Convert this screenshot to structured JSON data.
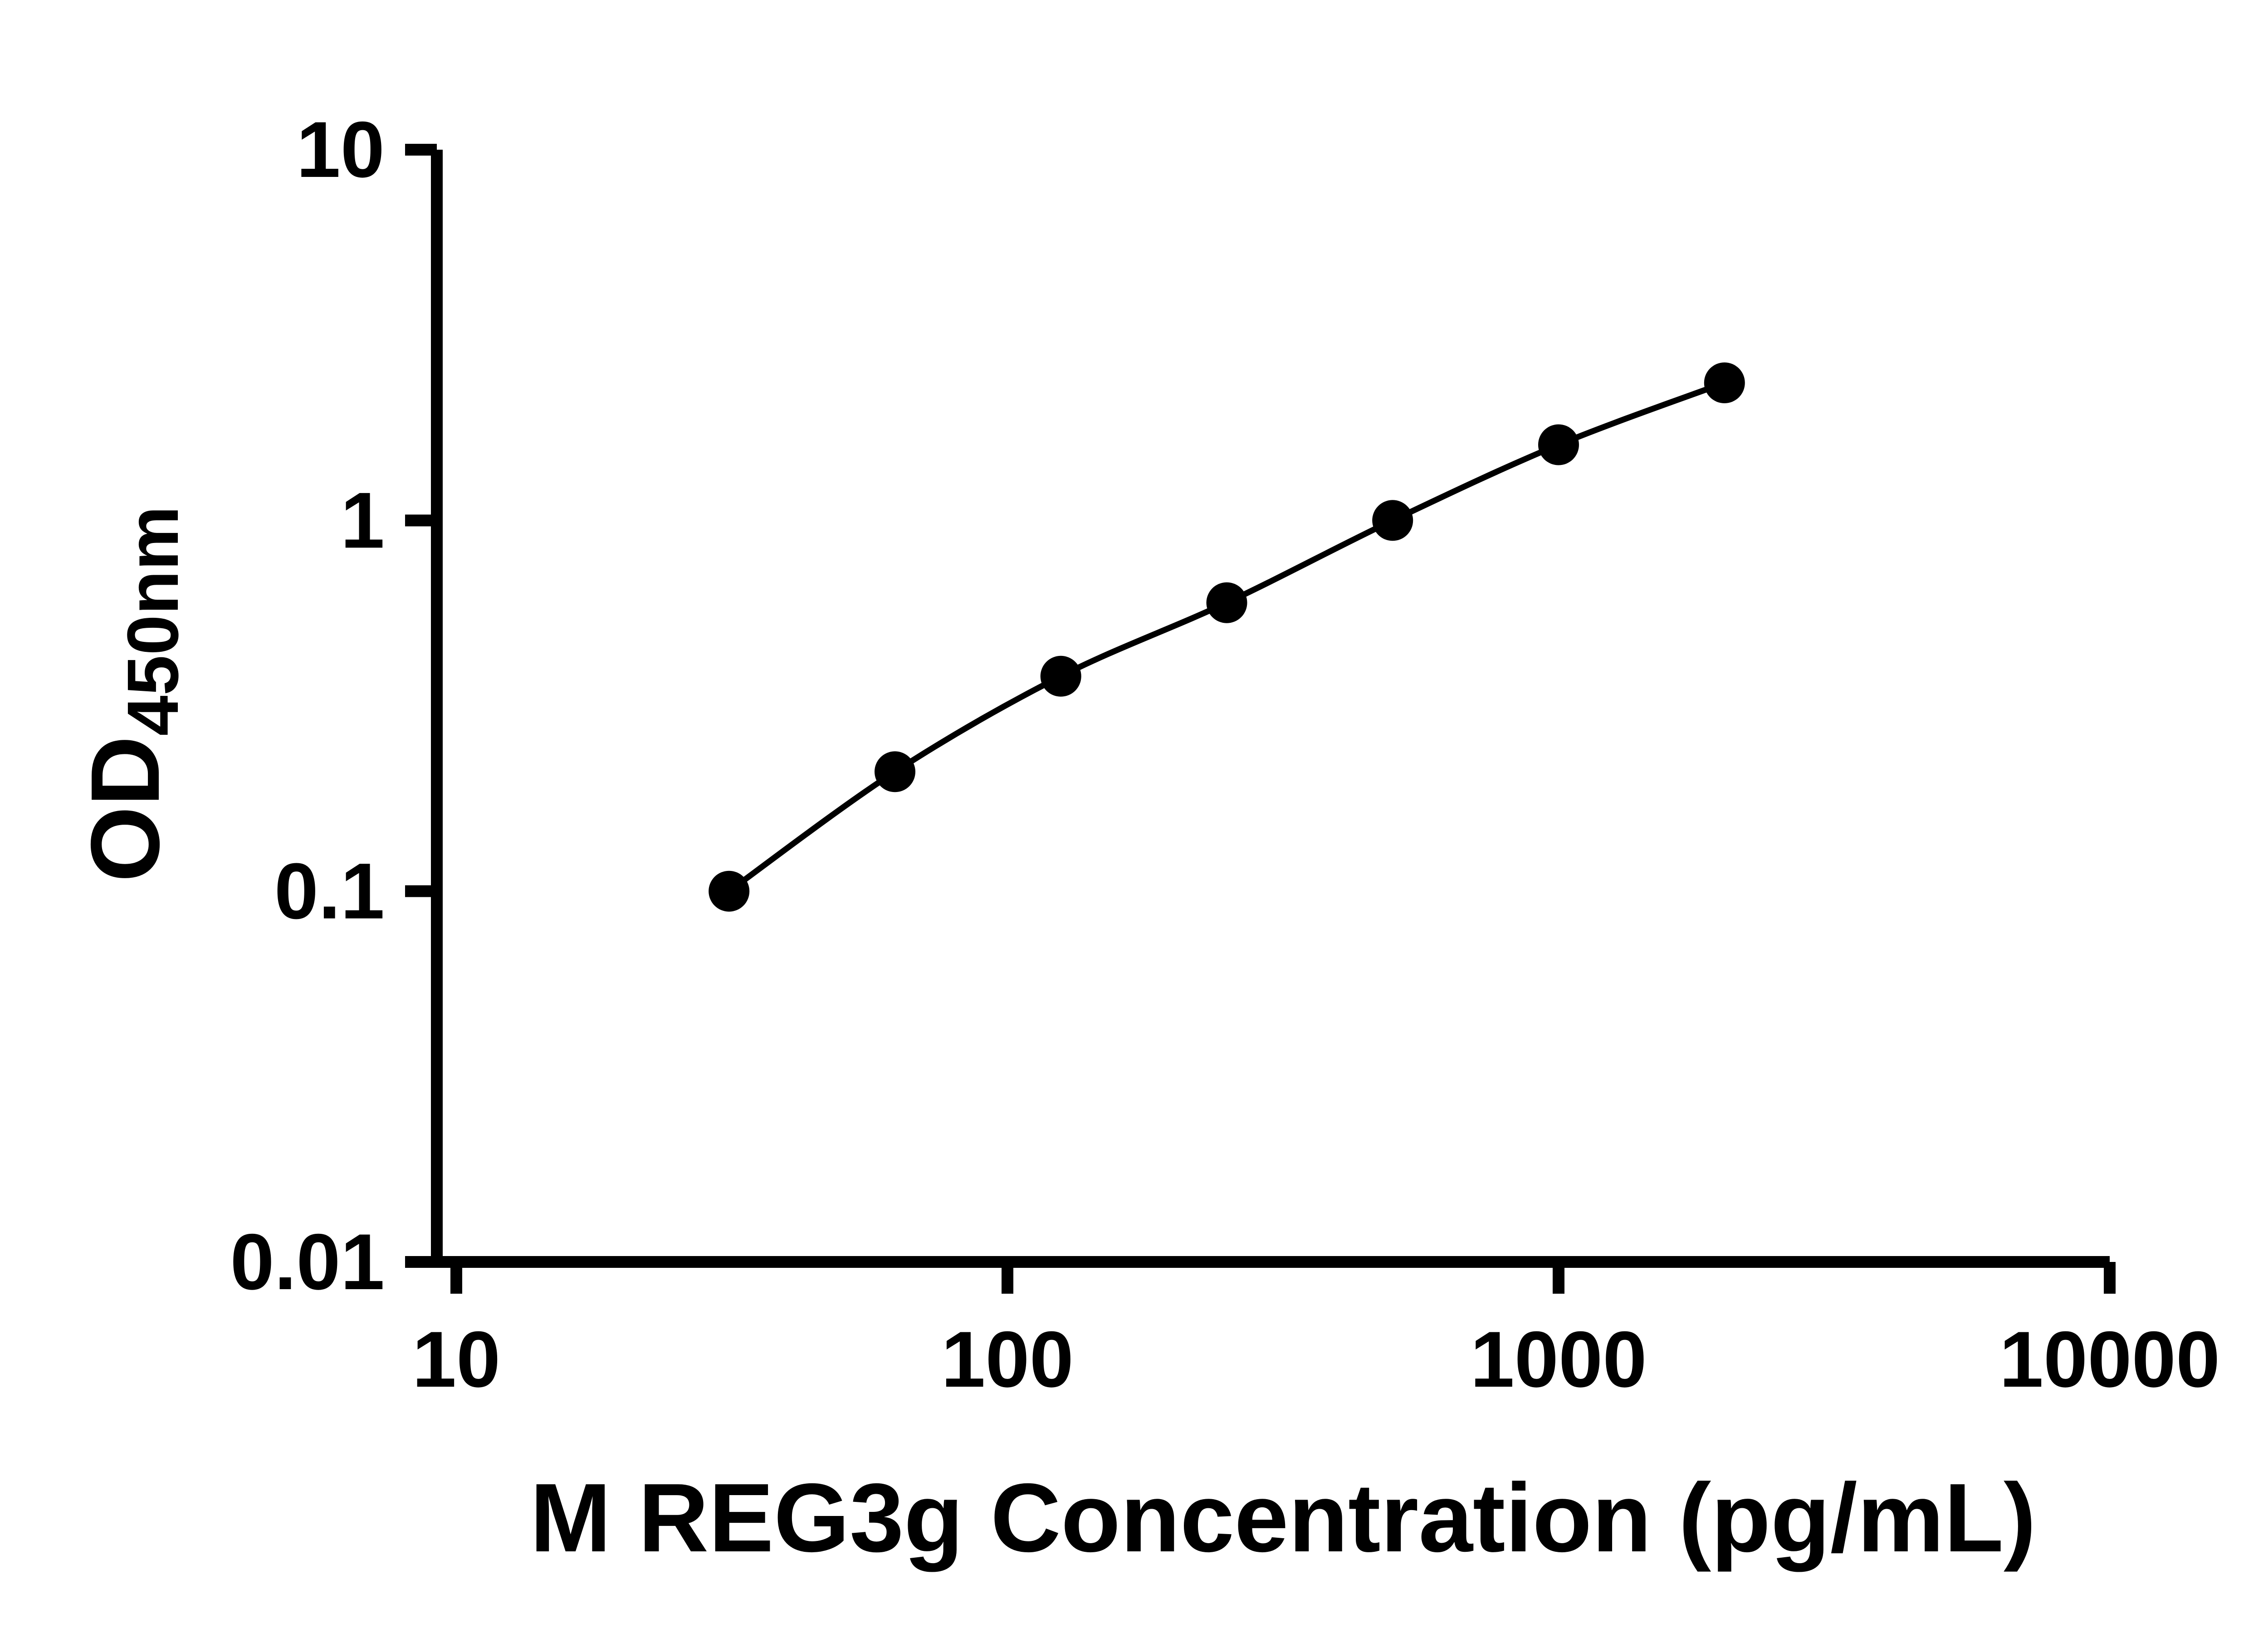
{
  "figure": {
    "background": "#ffffff"
  },
  "chart_data": {
    "type": "scatter",
    "subtype": "log-log standard curve with connecting smooth line",
    "title": "",
    "x": [
      31.25,
      62.5,
      125,
      250,
      500,
      1000,
      2000
    ],
    "y": [
      0.1,
      0.21,
      0.38,
      0.6,
      1.0,
      1.6,
      2.35
    ],
    "xlabel": "M REG3g Concentration (pg/mL)",
    "ylabel": "OD450nm",
    "ylabel_main": "OD",
    "ylabel_sub": "450nm",
    "x_scale": "log",
    "y_scale": "log",
    "xlim": [
      10,
      10000
    ],
    "ylim": [
      0.01,
      10
    ],
    "x_ticks": [
      10,
      100,
      1000,
      10000
    ],
    "x_tick_labels": [
      "10",
      "100",
      "1000",
      "10000"
    ],
    "y_ticks": [
      0.01,
      0.1,
      1,
      10
    ],
    "y_tick_labels": [
      "0.01",
      "0.1",
      "1",
      "10"
    ],
    "grid": false,
    "legend": "none",
    "marker": "filled-circle",
    "marker_color": "#000000",
    "line_color": "#000000",
    "axis_color": "#000000"
  }
}
